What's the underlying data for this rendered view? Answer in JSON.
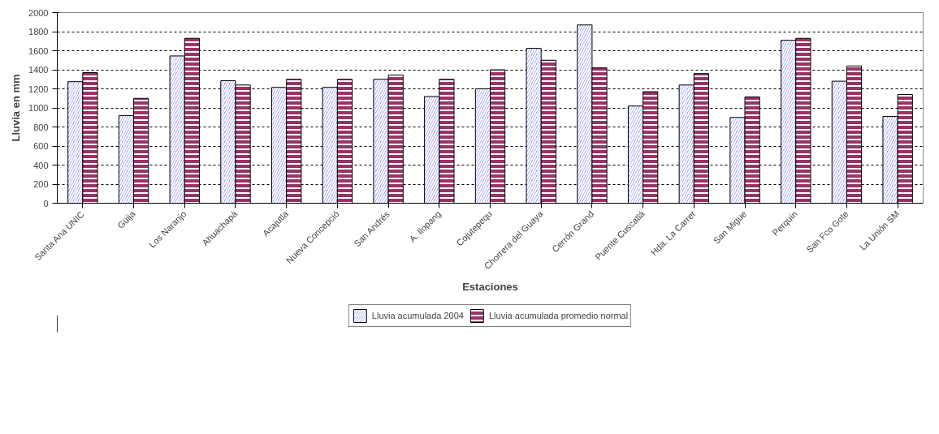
{
  "chart_data": {
    "type": "bar",
    "xlabel": "Estaciones",
    "ylabel": "Lluvia en mm",
    "categories": [
      "Santa Ana UNIC",
      "Güija",
      "Los Naranjo",
      "Ahuachapá",
      "Acajutla",
      "Nueva Concepció",
      "San Andrés",
      "A. Ilopang",
      "Cojutepequ",
      "Chorrera del Guaya",
      "Cerrón Grand",
      "Puente Cuscatlá",
      "Hda. La Carrer",
      "San Migue",
      "Perquín",
      "San Fco Gote",
      "La Unión SM"
    ],
    "series": [
      {
        "name": "Lluvia acumulada 2004",
        "color": "#9999ff",
        "values": [
          1275,
          920,
          1545,
          1285,
          1215,
          1215,
          1300,
          1120,
          1200,
          1625,
          1870,
          1020,
          1240,
          900,
          1710,
          1280,
          910
        ]
      },
      {
        "name": "Lluvia acumulada promedio normal",
        "color": "#993366",
        "values": [
          1370,
          1100,
          1730,
          1240,
          1300,
          1300,
          1345,
          1300,
          1400,
          1500,
          1420,
          1170,
          1360,
          1115,
          1730,
          1440,
          1140
        ]
      }
    ],
    "ylim": [
      0,
      2000
    ],
    "yticks": [
      0,
      200,
      400,
      600,
      800,
      1000,
      1200,
      1400,
      1600,
      1800,
      2000
    ],
    "grid": "y",
    "legend": "bottom"
  }
}
